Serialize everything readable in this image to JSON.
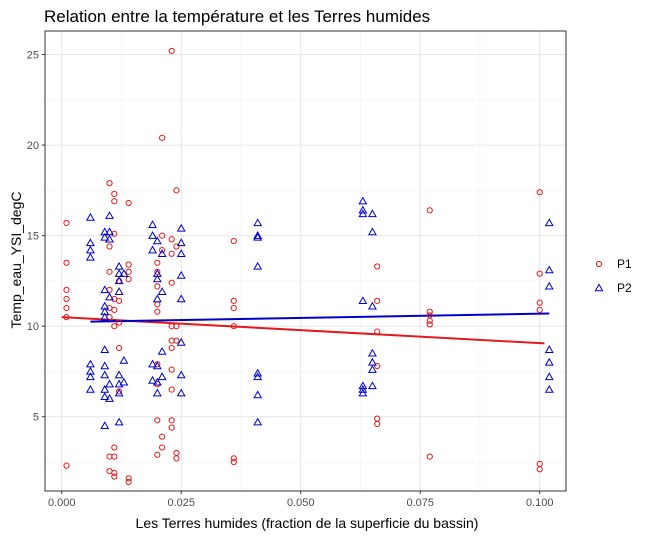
{
  "chart_data": {
    "type": "scatter",
    "title": "Relation entre la température et les Terres humides",
    "xlabel": "Les Terres humides (fraction de la superficie du bassin)",
    "ylabel": "Temp_eau_YSI_degC",
    "xlim": [
      -0.0035,
      0.1055
    ],
    "ylim": [
      0.9,
      26.3
    ],
    "x_ticks": [
      {
        "value": 0.0,
        "label": "0.000"
      },
      {
        "value": 0.025,
        "label": "0.025"
      },
      {
        "value": 0.05,
        "label": "0.050"
      },
      {
        "value": 0.075,
        "label": "0.075"
      },
      {
        "value": 0.1,
        "label": "0.100"
      }
    ],
    "y_ticks": [
      {
        "value": 5,
        "label": "5"
      },
      {
        "value": 10,
        "label": "10"
      },
      {
        "value": 15,
        "label": "15"
      },
      {
        "value": 20,
        "label": "20"
      },
      {
        "value": 25,
        "label": "25"
      }
    ],
    "grid": true,
    "legend_position": "right",
    "series": [
      {
        "name": "P1",
        "color": "#e31a1c",
        "marker": "circle",
        "points": [
          [
            0.001,
            15.7
          ],
          [
            0.001,
            13.5
          ],
          [
            0.001,
            12.0
          ],
          [
            0.001,
            11.5
          ],
          [
            0.001,
            11.0
          ],
          [
            0.001,
            10.5
          ],
          [
            0.001,
            2.3
          ],
          [
            0.01,
            17.9
          ],
          [
            0.01,
            14.4
          ],
          [
            0.01,
            13.0
          ],
          [
            0.01,
            12.0
          ],
          [
            0.01,
            11.0
          ],
          [
            0.01,
            10.5
          ],
          [
            0.01,
            2.8
          ],
          [
            0.01,
            2.0
          ],
          [
            0.011,
            17.3
          ],
          [
            0.011,
            16.9
          ],
          [
            0.011,
            15.1
          ],
          [
            0.011,
            11.5
          ],
          [
            0.011,
            10.9
          ],
          [
            0.011,
            10.0
          ],
          [
            0.011,
            3.3
          ],
          [
            0.011,
            2.8
          ],
          [
            0.011,
            1.9
          ],
          [
            0.011,
            1.7
          ],
          [
            0.012,
            12.5
          ],
          [
            0.012,
            11.4
          ],
          [
            0.012,
            10.2
          ],
          [
            0.012,
            8.8
          ],
          [
            0.012,
            6.4
          ],
          [
            0.014,
            16.8
          ],
          [
            0.014,
            13.4
          ],
          [
            0.014,
            13.0
          ],
          [
            0.014,
            12.6
          ],
          [
            0.014,
            1.6
          ],
          [
            0.014,
            1.4
          ],
          [
            0.02,
            13.5
          ],
          [
            0.02,
            13.0
          ],
          [
            0.02,
            12.2
          ],
          [
            0.02,
            11.2
          ],
          [
            0.02,
            10.8
          ],
          [
            0.02,
            7.9
          ],
          [
            0.02,
            6.8
          ],
          [
            0.02,
            4.8
          ],
          [
            0.02,
            2.9
          ],
          [
            0.021,
            20.4
          ],
          [
            0.021,
            15.0
          ],
          [
            0.021,
            14.2
          ],
          [
            0.021,
            3.9
          ],
          [
            0.021,
            3.3
          ],
          [
            0.023,
            25.2
          ],
          [
            0.023,
            14.8
          ],
          [
            0.023,
            14.0
          ],
          [
            0.023,
            12.4
          ],
          [
            0.023,
            10.0
          ],
          [
            0.023,
            9.2
          ],
          [
            0.023,
            8.8
          ],
          [
            0.023,
            7.6
          ],
          [
            0.023,
            6.5
          ],
          [
            0.023,
            4.8
          ],
          [
            0.023,
            4.4
          ],
          [
            0.024,
            17.5
          ],
          [
            0.024,
            14.4
          ],
          [
            0.024,
            10.0
          ],
          [
            0.024,
            9.2
          ],
          [
            0.024,
            3.0
          ],
          [
            0.024,
            2.7
          ],
          [
            0.036,
            14.7
          ],
          [
            0.036,
            11.4
          ],
          [
            0.036,
            11.0
          ],
          [
            0.036,
            10.0
          ],
          [
            0.036,
            2.7
          ],
          [
            0.036,
            2.5
          ],
          [
            0.066,
            13.3
          ],
          [
            0.066,
            11.4
          ],
          [
            0.066,
            9.7
          ],
          [
            0.066,
            7.8
          ],
          [
            0.066,
            4.9
          ],
          [
            0.066,
            4.6
          ],
          [
            0.077,
            16.4
          ],
          [
            0.077,
            10.8
          ],
          [
            0.077,
            10.6
          ],
          [
            0.077,
            10.3
          ],
          [
            0.077,
            10.1
          ],
          [
            0.077,
            2.8
          ],
          [
            0.1,
            17.4
          ],
          [
            0.1,
            12.9
          ],
          [
            0.1,
            11.3
          ],
          [
            0.1,
            10.9
          ],
          [
            0.1,
            2.4
          ],
          [
            0.1,
            2.1
          ]
        ],
        "trend": [
          [
            0.0,
            10.5
          ],
          [
            0.101,
            9.05
          ]
        ]
      },
      {
        "name": "P2",
        "color": "#0000cc",
        "marker": "triangle",
        "points": [
          [
            0.006,
            16.0
          ],
          [
            0.006,
            14.6
          ],
          [
            0.006,
            14.2
          ],
          [
            0.006,
            13.8
          ],
          [
            0.006,
            7.9
          ],
          [
            0.006,
            7.5
          ],
          [
            0.006,
            7.2
          ],
          [
            0.006,
            6.5
          ],
          [
            0.009,
            15.2
          ],
          [
            0.009,
            14.9
          ],
          [
            0.009,
            12.0
          ],
          [
            0.009,
            11.1
          ],
          [
            0.009,
            10.8
          ],
          [
            0.009,
            10.5
          ],
          [
            0.009,
            8.7
          ],
          [
            0.009,
            7.8
          ],
          [
            0.009,
            7.3
          ],
          [
            0.009,
            6.5
          ],
          [
            0.009,
            6.1
          ],
          [
            0.009,
            4.5
          ],
          [
            0.01,
            16.1
          ],
          [
            0.01,
            15.2
          ],
          [
            0.01,
            14.8
          ],
          [
            0.01,
            11.6
          ],
          [
            0.01,
            6.8
          ],
          [
            0.01,
            6.0
          ],
          [
            0.012,
            13.3
          ],
          [
            0.012,
            12.9
          ],
          [
            0.012,
            12.5
          ],
          [
            0.012,
            11.9
          ],
          [
            0.012,
            7.3
          ],
          [
            0.012,
            6.8
          ],
          [
            0.012,
            6.3
          ],
          [
            0.012,
            4.7
          ],
          [
            0.013,
            12.9
          ],
          [
            0.013,
            8.1
          ],
          [
            0.013,
            6.9
          ],
          [
            0.019,
            15.6
          ],
          [
            0.019,
            15.0
          ],
          [
            0.019,
            14.2
          ],
          [
            0.019,
            7.9
          ],
          [
            0.019,
            7.0
          ],
          [
            0.02,
            14.7
          ],
          [
            0.02,
            12.9
          ],
          [
            0.02,
            12.6
          ],
          [
            0.02,
            11.5
          ],
          [
            0.02,
            7.8
          ],
          [
            0.02,
            6.9
          ],
          [
            0.02,
            6.3
          ],
          [
            0.021,
            14.0
          ],
          [
            0.021,
            11.9
          ],
          [
            0.021,
            8.6
          ],
          [
            0.021,
            7.2
          ],
          [
            0.025,
            15.4
          ],
          [
            0.025,
            14.6
          ],
          [
            0.025,
            14.0
          ],
          [
            0.025,
            12.8
          ],
          [
            0.025,
            11.5
          ],
          [
            0.025,
            9.1
          ],
          [
            0.025,
            7.3
          ],
          [
            0.025,
            6.3
          ],
          [
            0.041,
            15.7
          ],
          [
            0.041,
            15.0
          ],
          [
            0.041,
            14.9
          ],
          [
            0.041,
            13.3
          ],
          [
            0.041,
            7.4
          ],
          [
            0.041,
            7.2
          ],
          [
            0.041,
            6.2
          ],
          [
            0.041,
            4.7
          ],
          [
            0.063,
            16.9
          ],
          [
            0.063,
            16.4
          ],
          [
            0.063,
            16.2
          ],
          [
            0.063,
            11.4
          ],
          [
            0.063,
            6.7
          ],
          [
            0.063,
            6.5
          ],
          [
            0.063,
            6.3
          ],
          [
            0.065,
            16.2
          ],
          [
            0.065,
            15.2
          ],
          [
            0.065,
            11.1
          ],
          [
            0.065,
            8.5
          ],
          [
            0.065,
            8.0
          ],
          [
            0.065,
            7.6
          ],
          [
            0.065,
            6.7
          ],
          [
            0.102,
            15.7
          ],
          [
            0.102,
            13.1
          ],
          [
            0.102,
            12.2
          ],
          [
            0.102,
            8.7
          ],
          [
            0.102,
            8.0
          ],
          [
            0.102,
            7.2
          ],
          [
            0.102,
            6.5
          ]
        ],
        "trend": [
          [
            0.006,
            10.25
          ],
          [
            0.102,
            10.7
          ]
        ]
      }
    ]
  }
}
